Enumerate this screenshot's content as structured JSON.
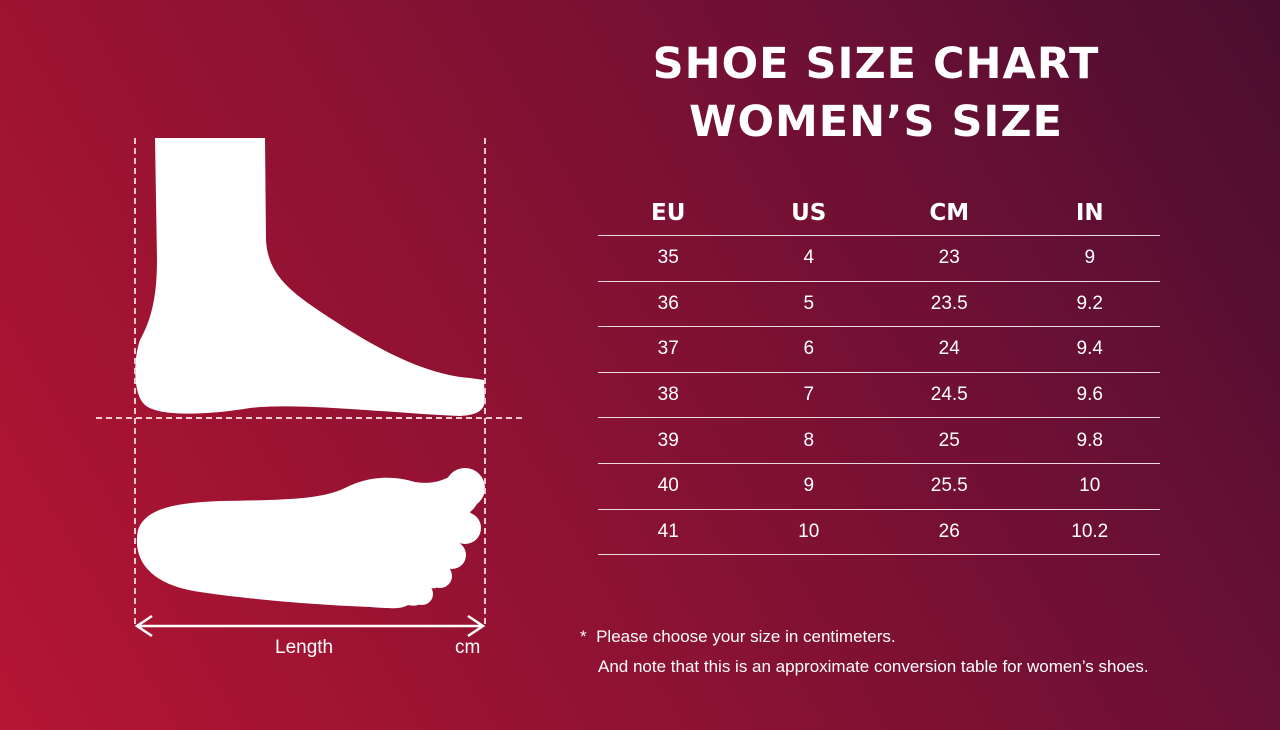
{
  "title": {
    "line1": "SHOE SIZE CHART",
    "line2": "WOMEN’S SIZE"
  },
  "table": {
    "headers": [
      "EU",
      "US",
      "CM",
      "IN"
    ],
    "rows": [
      [
        "35",
        "4",
        "23",
        "9"
      ],
      [
        "36",
        "5",
        "23.5",
        "9.2"
      ],
      [
        "37",
        "6",
        "24",
        "9.4"
      ],
      [
        "38",
        "7",
        "24.5",
        "9.6"
      ],
      [
        "39",
        "8",
        "25",
        "9.8"
      ],
      [
        "40",
        "9",
        "25.5",
        "10"
      ],
      [
        "41",
        "10",
        "26",
        "10.2"
      ]
    ]
  },
  "diagram": {
    "length_label": "Length",
    "unit_label": "cm",
    "icons": [
      "foot-side-icon",
      "foot-sole-icon",
      "double-arrow-icon"
    ]
  },
  "notes": {
    "asterisk": "*",
    "line1": "Please choose your size in centimeters.",
    "line2": "And note that this is an approximate conversion table for women’s shoes."
  },
  "colors": {
    "background_start": "#b51533",
    "background_end": "#4a0e30",
    "foreground": "#ffffff"
  }
}
